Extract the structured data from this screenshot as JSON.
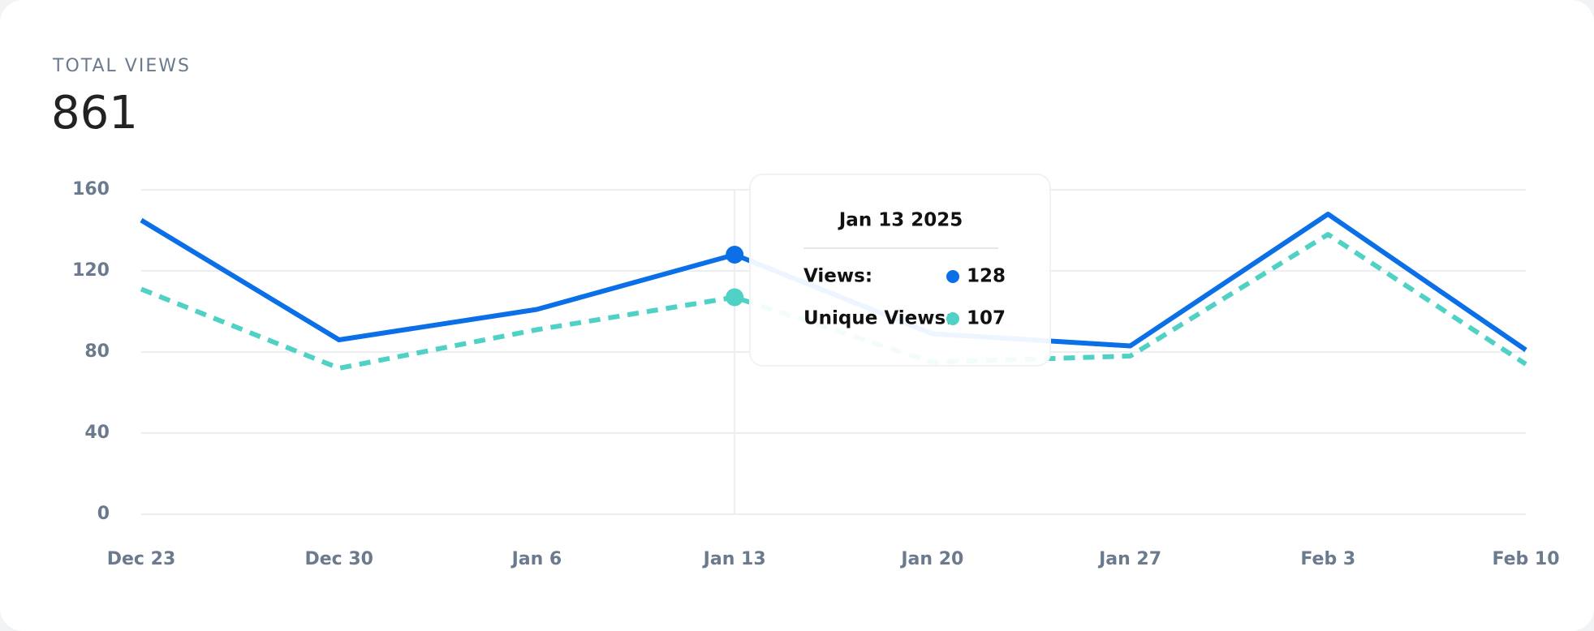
{
  "summary": {
    "label": "TOTAL VIEWS",
    "value": 861
  },
  "chart_data": {
    "type": "line",
    "categories": [
      "Dec 23",
      "Dec 30",
      "Jan 6",
      "Jan 13",
      "Jan 20",
      "Jan 27",
      "Feb 3",
      "Feb 10"
    ],
    "series": [
      {
        "name": "Views",
        "color": "#0b6fe8",
        "dashed": false,
        "values": [
          145,
          86,
          101,
          128,
          89,
          83,
          148,
          81
        ]
      },
      {
        "name": "Unique Views",
        "color": "#4fd1c5",
        "dashed": true,
        "values": [
          111,
          72,
          91,
          107,
          75,
          78,
          138,
          74
        ]
      }
    ],
    "ylim": [
      0,
      160
    ],
    "yticks": [
      0,
      40,
      80,
      120,
      160
    ],
    "grid": true,
    "tooltip": {
      "index": 3,
      "title": "Jan 13 2025",
      "labels": [
        "Views:",
        "Unique Views:"
      ]
    }
  }
}
